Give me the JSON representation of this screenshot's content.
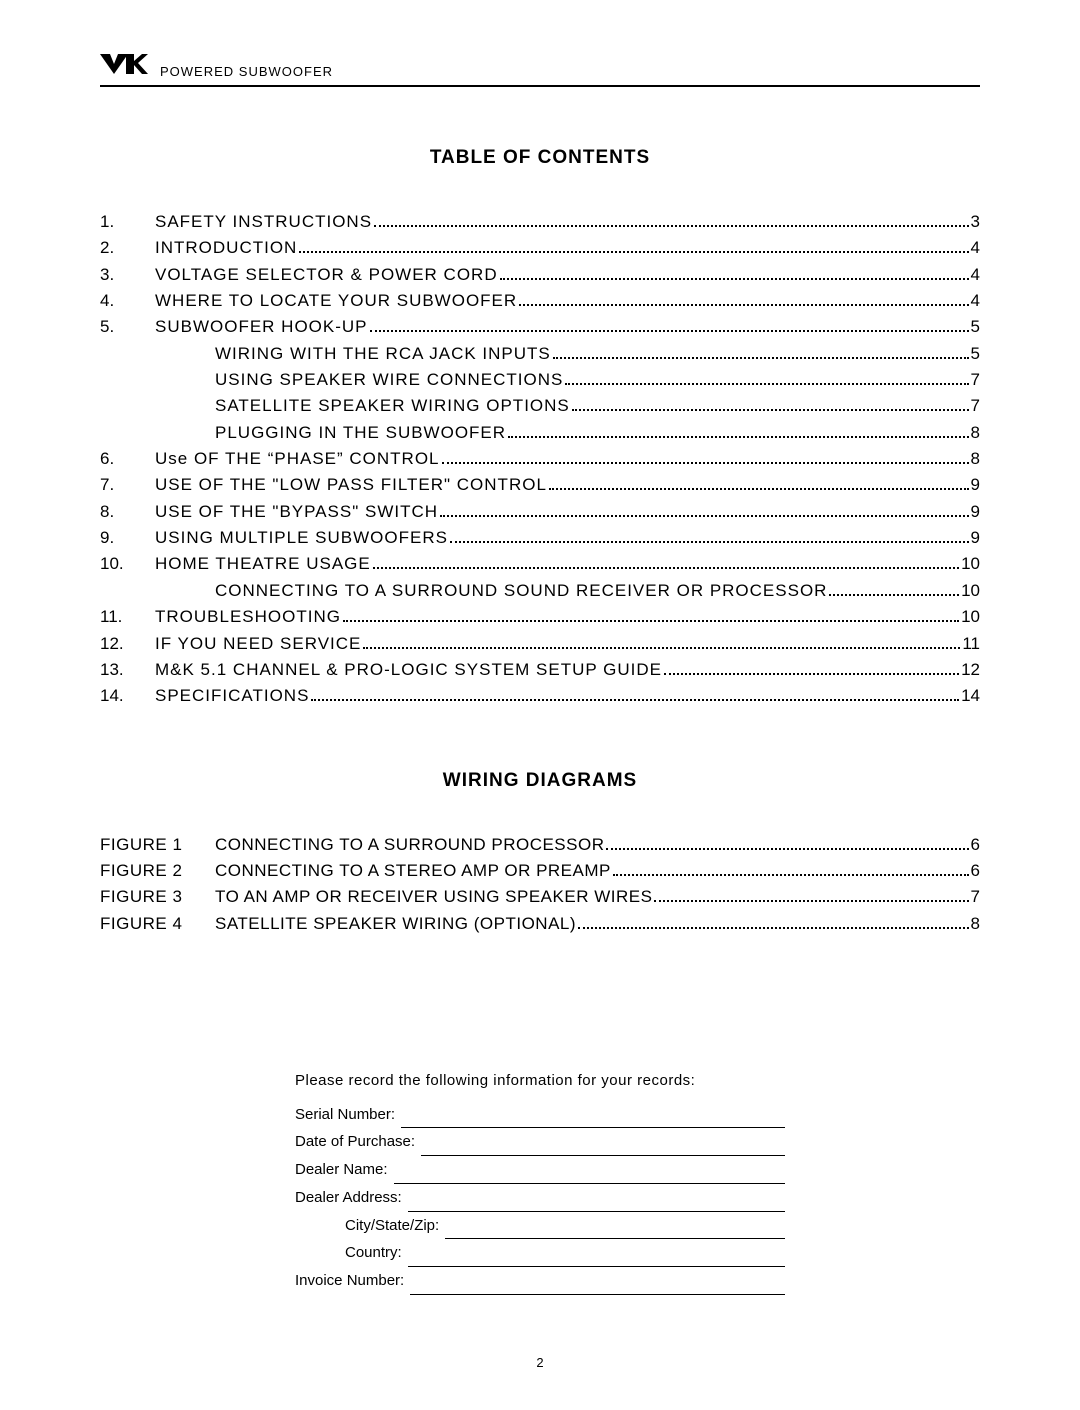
{
  "header": {
    "product_line": "POWERED SUBWOOFER"
  },
  "toc_title": "TABLE OF CONTENTS",
  "toc": [
    {
      "num": "1.",
      "label": "SAFETY  INSTRUCTIONS",
      "page": "3",
      "indent": 0
    },
    {
      "num": "2.",
      "label": "INTRODUCTION",
      "page": "4",
      "indent": 0
    },
    {
      "num": "3.",
      "label": "VOLTAGE  SELECTOR  &  POWER  CORD",
      "page": "4",
      "indent": 0
    },
    {
      "num": "4.",
      "label": "WHERE  TO  LOCATE  YOUR  SUBWOOFER",
      "page": "4",
      "indent": 0
    },
    {
      "num": "5.",
      "label": "SUBWOOFER   HOOK-UP",
      "page": "5",
      "indent": 0
    },
    {
      "num": "",
      "label": "WIRING  WITH  THE  RCA  JACK  INPUTS",
      "page": "5",
      "indent": 1
    },
    {
      "num": "",
      "label": "USING  SPEAKER  WIRE  CONNECTIONS",
      "page": "7",
      "indent": 1
    },
    {
      "num": "",
      "label": "SATELLITE  SPEAKER  WIRING  OPTIONS",
      "page": "7",
      "indent": 1
    },
    {
      "num": "",
      "label": "PLUGGING IN THE SUBWOOFER",
      "page": "8",
      "indent": 1
    },
    {
      "num": "6.",
      "label": "Use OF THE “PHASE” CONTROL",
      "page": "8",
      "indent": 0
    },
    {
      "num": "7.",
      "label": "USE  OF  THE  \"LOW  PASS  FILTER\"  CONTROL",
      "page": "9",
      "indent": 0
    },
    {
      "num": "8.",
      "label": "USE  OF  THE  \"BYPASS\"  SWITCH",
      "page": "9",
      "indent": 0
    },
    {
      "num": "9.",
      "label": "USING MULTIPLE SUBWOOFERS",
      "page": "9",
      "indent": 0
    },
    {
      "num": "10.",
      "label": "HOME  THEATRE  USAGE",
      "page": "10",
      "indent": 0
    },
    {
      "num": "",
      "label": "CONNECTING TO A SURROUND SOUND RECEIVER OR PROCESSOR",
      "page": "10",
      "indent": 1
    },
    {
      "num": "11.",
      "label": "TROUBLESHOOTING",
      "page": "10",
      "indent": 0
    },
    {
      "num": "12.",
      "label": "IF YOU NEED SERVICE",
      "page": "11",
      "indent": 0
    },
    {
      "num": "13.",
      "label": "M&K 5.1 CHANNEL & PRO-LOGIC SYSTEM SETUP GUIDE",
      "page": "12",
      "indent": 0
    },
    {
      "num": "14.",
      "label": "SPECIFICATIONS",
      "page": "14",
      "indent": 0
    }
  ],
  "wiring_title": "WIRING DIAGRAMS",
  "figures": [
    {
      "label": "FIGURE 1",
      "title": "CONNECTING TO A SURROUND PROCESSOR",
      "page": "6"
    },
    {
      "label": "FIGURE 2",
      "title": "CONNECTING TO A STEREO AMP OR PREAMP",
      "page": "6"
    },
    {
      "label": "FIGURE 3",
      "title": "TO AN AMP OR RECEIVER USING SPEAKER WIRES",
      "page": "7"
    },
    {
      "label": "FIGURE 4",
      "title": "SATELLITE SPEAKER WIRING (OPTIONAL)",
      "page": "8"
    }
  ],
  "records": {
    "intro": "Please record the following information for your records:",
    "fields": [
      {
        "label": "Serial Number:",
        "indent": false
      },
      {
        "label": "Date of Purchase:",
        "indent": false
      },
      {
        "label": "Dealer Name:",
        "indent": false
      },
      {
        "label": "Dealer Address:",
        "indent": false
      },
      {
        "label": "City/State/Zip:",
        "indent": true
      },
      {
        "label": "Country:",
        "indent": true
      },
      {
        "label": "Invoice Number:",
        "indent": false
      }
    ]
  },
  "page_number": "2"
}
